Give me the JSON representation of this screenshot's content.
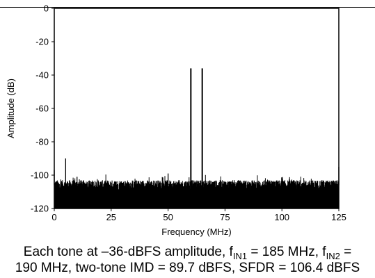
{
  "chart_data": {
    "type": "line",
    "title": "",
    "xlabel": "Frequency (MHz)",
    "ylabel": "Amplitude (dB)",
    "xlim": [
      0,
      125
    ],
    "ylim": [
      -120,
      0
    ],
    "xticks": [
      0,
      25,
      50,
      75,
      100,
      125
    ],
    "yticks": [
      0,
      -20,
      -40,
      -60,
      -80,
      -100,
      -120
    ],
    "grid": false,
    "noise_floor_dB": -108,
    "series": [
      {
        "values_note": "spectrum peaks (MHz, dB)",
        "x": [
          0,
          5,
          10,
          50,
          60,
          65,
          100,
          125
        ],
        "y": [
          -97,
          -90,
          -101,
          -99,
          -36,
          -36,
          -102,
          -95
        ]
      }
    ],
    "color": "#000000"
  },
  "caption": {
    "line1": {
      "a": "Each tone at –36-dBFS amplitude, f",
      "sub1": "IN1",
      "b": " = 185 MHz, f",
      "sub2": "IN2",
      "c": " ="
    },
    "line2": "190 MHz, two-tone IMD = 89.7 dBFS, SFDR = 106.4 dBFS"
  }
}
